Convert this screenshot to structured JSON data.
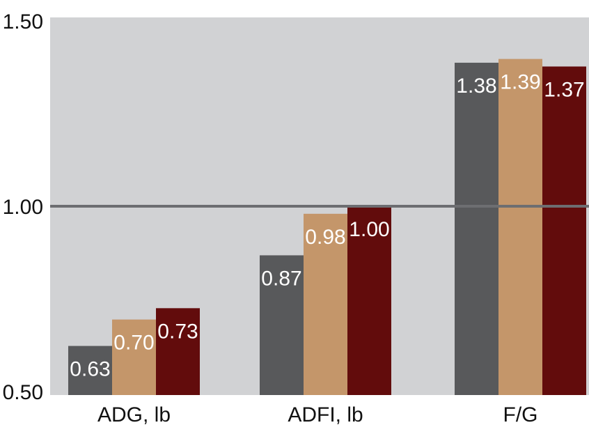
{
  "chart_data": {
    "type": "bar",
    "categories": [
      "ADG, lb",
      "ADFI, lb",
      "F/G"
    ],
    "series": [
      {
        "values": [
          0.63,
          0.87,
          1.38
        ],
        "labels": [
          "0.63",
          "0.87",
          "1.38"
        ],
        "color": "#58595b"
      },
      {
        "values": [
          0.7,
          0.98,
          1.39
        ],
        "labels": [
          "0.70",
          "0.98",
          "1.39"
        ],
        "color": "#c4966a"
      },
      {
        "values": [
          0.73,
          1.0,
          1.37
        ],
        "labels": [
          "0.73",
          "1.00",
          "1.37"
        ],
        "color": "#620c0c"
      }
    ],
    "y_ticks": [
      "0.50",
      "1.00",
      "1.50"
    ],
    "ylim": [
      0.5,
      1.5
    ],
    "grid": "single line at 1.00",
    "background_color": "#d1d2d4",
    "reference_line_color": "#6d6e71",
    "title": "",
    "xlabel": "",
    "ylabel": ""
  }
}
